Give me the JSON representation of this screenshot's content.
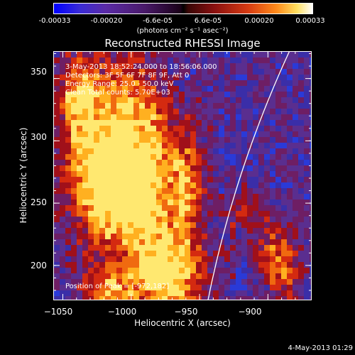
{
  "colorbar": {
    "ticks": [
      "-0.00033",
      "-0.00020",
      "-6.6e-05",
      "6.6e-05",
      "0.00020",
      "0.00033"
    ],
    "units": "(photons cm⁻² s⁻¹ asec⁻²)"
  },
  "chart_data": {
    "type": "heatmap",
    "title": "Reconstructed RHESSI Image",
    "xlabel": "Heliocentric X (arcsec)",
    "ylabel": "Heliocentric Y (arcsec)",
    "xlim": [
      -1057,
      -868
    ],
    "ylim": [
      172,
      372
    ],
    "xticks": [
      -1050,
      -1000,
      -950,
      -900
    ],
    "xtick_labels": [
      "−1050",
      "−1000",
      "−950",
      "−900"
    ],
    "yticks": [
      200,
      250,
      300,
      350
    ],
    "ytick_labels": [
      "200",
      "250",
      "300",
      "350"
    ],
    "color_range": [
      -0.00033,
      0.00033
    ],
    "info_lines": [
      "3-May-2013 18:52:24.000 to 18:56:06.000",
      "Detectors: 3F 5F 6F 7F 8F 9F, Att 0",
      "Energy Range: 25.0 - 50.0 keV",
      "Clean    Total counts: 5.70E+03"
    ],
    "peak_label": "Position of Peak = [-972,182]",
    "colors": {
      "background": "#5a2e8f",
      "hot": [
        "#6e1e64",
        "#a0101a",
        "#d42a10",
        "#f06a10",
        "#ffb020",
        "#ffe870"
      ],
      "cold": [
        "#3a2ea8",
        "#2a3ad8"
      ],
      "limb": "#ffffff"
    }
  },
  "footer": {
    "date": "4-May-2013 01:29"
  }
}
